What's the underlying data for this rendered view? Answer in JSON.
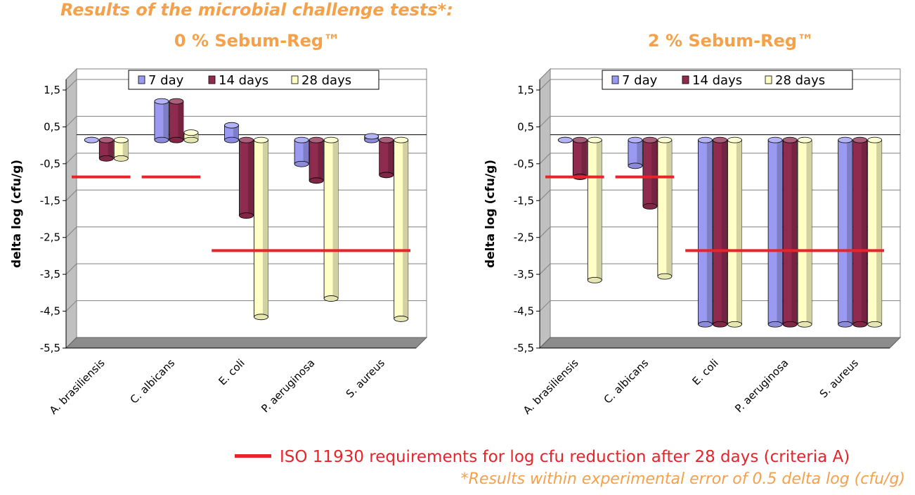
{
  "title": "Results of the microbial challenge tests*:",
  "colors": {
    "day7": "#9A9AF2",
    "day14": "#8E2B4E",
    "day28": "#FFFFC6",
    "iso_line": "#E8232A",
    "title": "#F5A04A",
    "floor": "#8C8C8C"
  },
  "legend_note": "ISO 11930 requirements for log cfu reduction after 28 days (criteria A)",
  "footnote": "*Results within experimental error of 0.5 delta log (cfu/g)",
  "chart_data": [
    {
      "type": "bar",
      "title": "0 % Sebum-Reg™",
      "ylabel": "delta log (cfu/g)",
      "ylim": [
        -5.5,
        1.5
      ],
      "yticks": [
        "1,5",
        "0,5",
        "-0,5",
        "-1,5",
        "-2,5",
        "-3,5",
        "-4,5",
        "-5,5"
      ],
      "categories": [
        "A. brasiliensis",
        "C. albicans",
        "E. coli",
        "P. aeruginosa",
        "S. aureus"
      ],
      "series": [
        {
          "name": "7 day",
          "values": [
            0,
            1.05,
            0.4,
            -0.65,
            0.1
          ]
        },
        {
          "name": "14 days",
          "values": [
            -0.5,
            1.05,
            -2.05,
            -1.1,
            -0.95
          ]
        },
        {
          "name": "28 days",
          "values": [
            -0.5,
            0.2,
            -4.8,
            -4.3,
            -4.85
          ]
        }
      ],
      "iso_requirements": [
        {
          "categories": [
            "A. brasiliensis"
          ],
          "value": -1.0
        },
        {
          "categories": [
            "C. albicans"
          ],
          "value": -1.0
        },
        {
          "categories": [
            "E. coli",
            "P. aeruginosa",
            "S. aureus"
          ],
          "value": -3.0
        }
      ],
      "grid": true,
      "legend_position": "top"
    },
    {
      "type": "bar",
      "title": "2 % Sebum-Reg™",
      "ylabel": "delta log (cfu/g)",
      "ylim": [
        -5.5,
        1.5
      ],
      "yticks": [
        "1,5",
        "0,5",
        "-0,5",
        "-1,5",
        "-2,5",
        "-3,5",
        "-4,5",
        "-5,5"
      ],
      "categories": [
        "A. brasiliensis",
        "C. albicans",
        "E. coli",
        "P. aeruginosa",
        "S. aureus"
      ],
      "series": [
        {
          "name": "7 day",
          "values": [
            0,
            -0.7,
            -5.0,
            -5.0,
            -5.0
          ]
        },
        {
          "name": "14 days",
          "values": [
            -1.0,
            -1.8,
            -5.0,
            -5.0,
            -5.0
          ]
        },
        {
          "name": "28 days",
          "values": [
            -3.8,
            -3.7,
            -5.0,
            -5.0,
            -5.0
          ]
        }
      ],
      "iso_requirements": [
        {
          "categories": [
            "A. brasiliensis"
          ],
          "value": -1.0
        },
        {
          "categories": [
            "C. albicans"
          ],
          "value": -1.0
        },
        {
          "categories": [
            "E. coli",
            "P. aeruginosa",
            "S. aureus"
          ],
          "value": -3.0
        }
      ],
      "grid": true,
      "legend_position": "top"
    }
  ]
}
